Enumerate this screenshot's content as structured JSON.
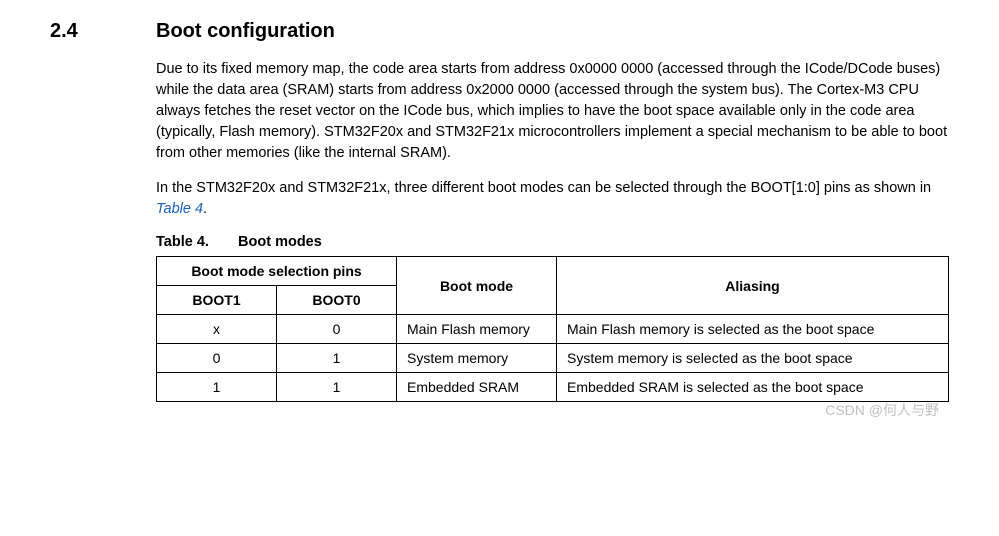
{
  "section": {
    "number": "2.4",
    "title": "Boot configuration"
  },
  "para1": "Due to its fixed memory map, the code area starts from address 0x0000 0000 (accessed through the ICode/DCode buses) while the data area (SRAM) starts from address 0x2000 0000 (accessed through the system bus). The Cortex-M3 CPU always fetches the reset vector on the ICode bus, which implies to have the boot space available only in the code area (typically, Flash memory). STM32F20x and STM32F21x microcontrollers implement a special mechanism to be able to boot from other memories (like the internal SRAM).",
  "para2_a": "In the STM32F20x and STM32F21x, three different boot modes can be selected through the BOOT[1:0] pins as shown in ",
  "para2_link": "Table 4",
  "para2_b": ".",
  "table": {
    "caption_num": "Table 4.",
    "caption_title": "Boot modes",
    "header_group": "Boot mode selection pins",
    "header_sub1": "BOOT1",
    "header_sub2": "BOOT0",
    "header_mode": "Boot mode",
    "header_alias": "Aliasing",
    "rows": [
      {
        "b1": "x",
        "b0": "0",
        "mode": "Main Flash memory",
        "alias": "Main Flash memory is selected as the boot space"
      },
      {
        "b1": "0",
        "b0": "1",
        "mode": "System memory",
        "alias": "System memory is selected as the boot space"
      },
      {
        "b1": "1",
        "b0": "1",
        "mode": "Embedded SRAM",
        "alias": "Embedded SRAM is selected as the boot space"
      }
    ]
  },
  "watermark": "CSDN @何人与野",
  "colors": {
    "text": "#000000",
    "link": "#1a5fbf",
    "border": "#000000",
    "background": "#ffffff",
    "watermark": "rgba(140,140,140,0.55)"
  }
}
